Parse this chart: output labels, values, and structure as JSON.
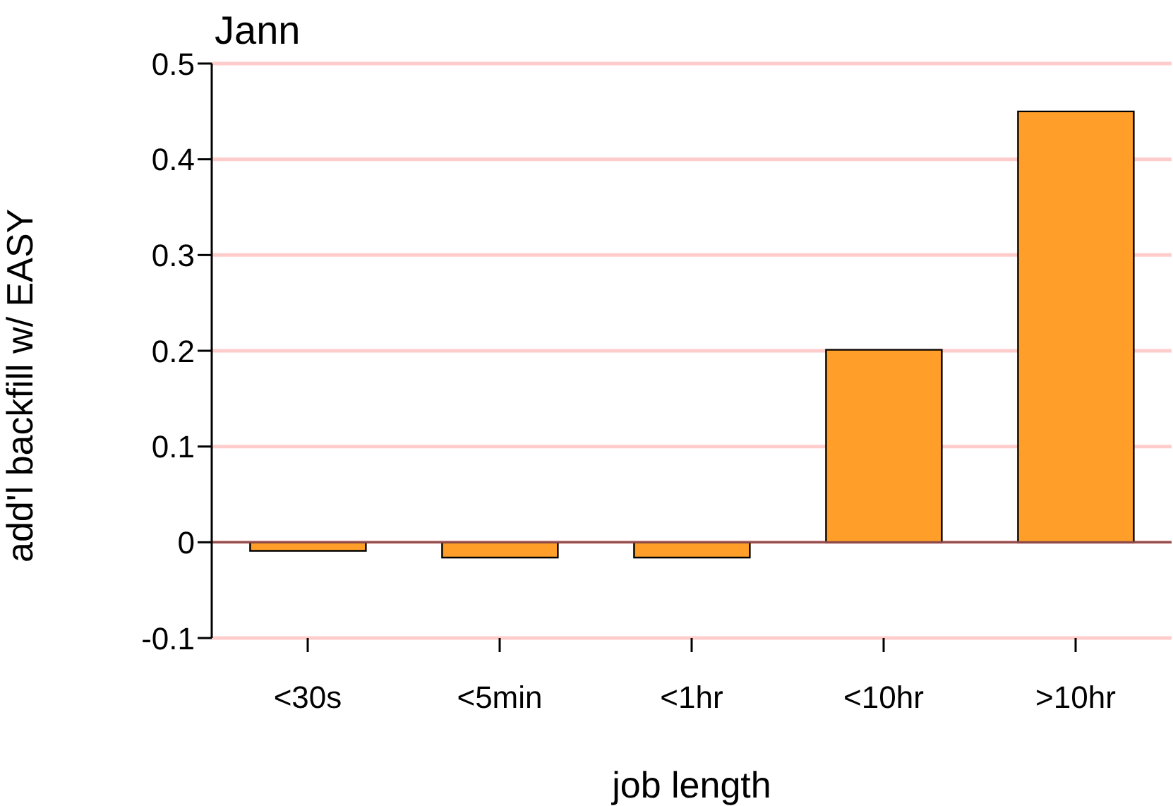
{
  "chart_data": {
    "type": "bar",
    "title": "Jann",
    "xlabel": "job length",
    "ylabel": "add'l backfill w/ EASY",
    "categories": [
      "<30s",
      "<5min",
      "<1hr",
      "<10hr",
      ">10hr"
    ],
    "values": [
      -0.009,
      -0.016,
      -0.016,
      0.201,
      0.45
    ],
    "color": "#ff9f2a",
    "ylim": [
      -0.1,
      0.5
    ],
    "yticks": [
      -0.1,
      0,
      0.1,
      0.2,
      0.3,
      0.4,
      0.5
    ],
    "grid": "y",
    "ref_lines": [
      {
        "axis": "y",
        "value": 0,
        "color": "#8b4a4a"
      }
    ]
  }
}
